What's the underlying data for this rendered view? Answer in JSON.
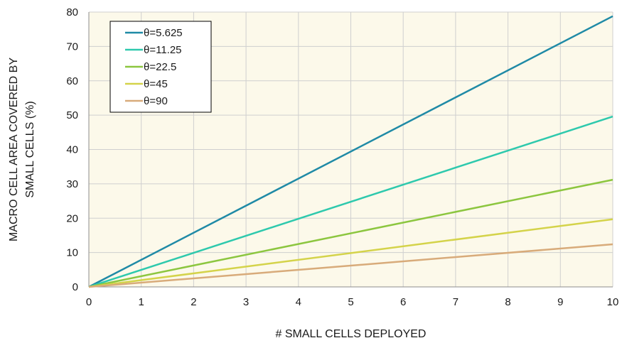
{
  "chart_data": {
    "type": "line",
    "title": "",
    "xlabel": "# SMALL CELLS DEPLOYED",
    "ylabel_lines": [
      "MACRO CELL AREA COVERED BY",
      "SMALL CELLS (%)"
    ],
    "xlim": [
      0,
      10
    ],
    "ylim": [
      0,
      80
    ],
    "x_ticks": [
      0,
      1,
      2,
      3,
      4,
      5,
      6,
      7,
      8,
      9,
      10
    ],
    "y_ticks": [
      0,
      10,
      20,
      30,
      40,
      50,
      60,
      70,
      80
    ],
    "grid": true,
    "legend_position": "top-left",
    "plot_background": "#fcf9ea",
    "x": [
      0,
      10
    ],
    "series": [
      {
        "name": "θ=5.625",
        "color": "#1f8aa6",
        "values": [
          0,
          78.8
        ]
      },
      {
        "name": "θ=11.25",
        "color": "#2ec9ad",
        "values": [
          0,
          49.6
        ]
      },
      {
        "name": "θ=22.5",
        "color": "#8cc63f",
        "values": [
          0,
          31.2
        ]
      },
      {
        "name": "θ=45",
        "color": "#d4d34a",
        "values": [
          0,
          19.7
        ]
      },
      {
        "name": "θ=90",
        "color": "#d8ab7a",
        "values": [
          0,
          12.4
        ]
      }
    ]
  }
}
